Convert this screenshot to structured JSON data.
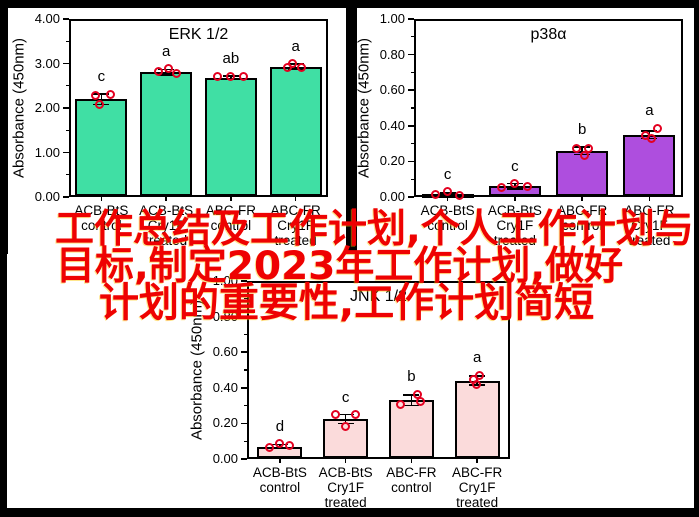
{
  "overlay": {
    "color": "#ee0202",
    "lines": [
      "工作总结及工作计划,个人工作计划与",
      "目标,制定2023年工作计划,做好",
      "计划的重要性,工作计划简短"
    ]
  },
  "chart_data": [
    {
      "id": "erk",
      "type": "bar",
      "title": "ERK 1/2",
      "ylabel": "Absorbance (450nm)",
      "ylim": [
        0,
        4
      ],
      "grid": false,
      "bar_color": "#40dfa4",
      "point_color": "#e30020",
      "yticks": [
        {
          "v": 0.0,
          "t": "0.00"
        },
        {
          "v": 1.0,
          "t": "1.00"
        },
        {
          "v": 2.0,
          "t": "2.00"
        },
        {
          "v": 3.0,
          "t": "3.00"
        },
        {
          "v": 4.0,
          "t": "4.00"
        }
      ],
      "minor_ticks": [
        0.5,
        1.5,
        2.5,
        3.5
      ],
      "categories": [
        [
          "ACB-BtS",
          "control"
        ],
        [
          "ACB-BtS",
          "Cry1F",
          "treated"
        ],
        [
          "ABC-FR",
          "control"
        ],
        [
          "ABC-FR",
          "Cry1F",
          "treated"
        ]
      ],
      "values": [
        2.2,
        2.8,
        2.68,
        2.93
      ],
      "errors": [
        0.12,
        0.06,
        0.04,
        0.06
      ],
      "letters": [
        "c",
        "a",
        "ab",
        "a"
      ],
      "points": [
        [
          [
            -6,
            2.28
          ],
          [
            9,
            2.3
          ],
          [
            -2,
            2.08
          ]
        ],
        [
          [
            -8,
            2.82
          ],
          [
            2,
            2.88
          ],
          [
            10,
            2.78
          ]
        ],
        [
          [
            -13,
            2.7
          ],
          [
            0,
            2.71
          ],
          [
            13,
            2.7
          ]
        ],
        [
          [
            -3,
            3.0
          ],
          [
            -8,
            2.92
          ],
          [
            6,
            2.92
          ]
        ]
      ]
    },
    {
      "id": "p38",
      "type": "bar",
      "title": "p38α",
      "ylabel": "Absorbance (450nm)",
      "ylim": [
        0,
        1
      ],
      "grid": false,
      "bar_color": "#ae4ede",
      "point_color": "#e30020",
      "yticks": [
        {
          "v": 0.0,
          "t": "0.00"
        },
        {
          "v": 0.2,
          "t": "0.20"
        },
        {
          "v": 0.4,
          "t": "0.40"
        },
        {
          "v": 0.6,
          "t": "0.60"
        },
        {
          "v": 0.8,
          "t": "0.80"
        },
        {
          "v": 1.0,
          "t": "1.00"
        }
      ],
      "minor_ticks": [
        0.1,
        0.3,
        0.5,
        0.7,
        0.9
      ],
      "categories": [
        [
          "ACB-BtS",
          "control"
        ],
        [
          "ACB-BtS",
          "Cry1F",
          "treated"
        ],
        [
          "ABC-FR",
          "control"
        ],
        [
          "ABC-FR",
          "Cry1F",
          "treated"
        ]
      ],
      "values": [
        0.015,
        0.06,
        0.26,
        0.35
      ],
      "errors": [
        0.008,
        0.015,
        0.02,
        0.02
      ],
      "letters": [
        "c",
        "c",
        "b",
        "a"
      ],
      "points": [
        [
          [
            -12,
            0.015
          ],
          [
            0,
            0.03
          ],
          [
            12,
            0.01
          ]
        ],
        [
          [
            -13,
            0.055
          ],
          [
            0,
            0.075
          ],
          [
            13,
            0.06
          ]
        ],
        [
          [
            -6,
            0.275
          ],
          [
            6,
            0.27
          ],
          [
            2,
            0.235
          ]
        ],
        [
          [
            8,
            0.385
          ],
          [
            -4,
            0.345
          ],
          [
            2,
            0.33
          ]
        ]
      ]
    },
    {
      "id": "jnk",
      "type": "bar",
      "title": "JNK 1/2",
      "ylabel": "Absorbance (450nm)",
      "ylim": [
        0,
        1
      ],
      "grid": false,
      "bar_color": "#fbdbdb",
      "point_color": "#e30020",
      "yticks": [
        {
          "v": 0.0,
          "t": "0.00"
        },
        {
          "v": 0.2,
          "t": "0.20"
        },
        {
          "v": 0.4,
          "t": "0.40"
        },
        {
          "v": 0.6,
          "t": "0.60"
        },
        {
          "v": 0.8,
          "t": "0.80"
        },
        {
          "v": 1.0,
          "t": "1.00"
        }
      ],
      "minor_ticks": [
        0.1,
        0.3,
        0.5,
        0.7,
        0.9
      ],
      "categories": [
        [
          "ACB-BtS",
          "control"
        ],
        [
          "ACB-BtS",
          "Cry1F",
          "treated"
        ],
        [
          "ABC-FR",
          "control"
        ],
        [
          "ABC-FR",
          "Cry1F",
          "treated"
        ]
      ],
      "values": [
        0.07,
        0.225,
        0.33,
        0.44
      ],
      "errors": [
        0.012,
        0.025,
        0.03,
        0.025
      ],
      "letters": [
        "d",
        "c",
        "b",
        "a"
      ],
      "points": [
        [
          [
            -10,
            0.065
          ],
          [
            0,
            0.085
          ],
          [
            10,
            0.075
          ]
        ],
        [
          [
            -10,
            0.25
          ],
          [
            10,
            0.25
          ],
          [
            0,
            0.18
          ]
        ],
        [
          [
            -11,
            0.305
          ],
          [
            6,
            0.365
          ],
          [
            9,
            0.325
          ]
        ],
        [
          [
            2,
            0.47
          ],
          [
            -4,
            0.445
          ],
          [
            -1,
            0.42
          ]
        ]
      ]
    }
  ]
}
